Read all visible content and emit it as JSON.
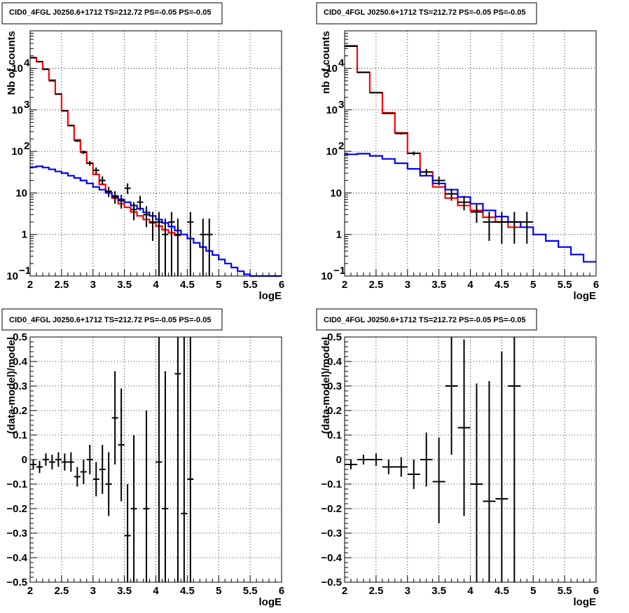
{
  "chart_data": [
    {
      "type": "histogram",
      "title": "CID0_4FGL J0250.6+1712 TS=212.72 PS=-0.05 PS=-0.05",
      "xlabel": "logE",
      "ylabel": "Nb of counts",
      "xlim": [
        2,
        6
      ],
      "ylim": [
        0.1,
        80000
      ],
      "yscale": "log",
      "grid": true,
      "x_ticks": [
        "2",
        "2.5",
        "3",
        "3.5",
        "4",
        "4.5",
        "5",
        "5.5",
        "6"
      ],
      "y_ticks": [
        {
          "v": 0.1,
          "t": "10",
          "sup": "−1"
        },
        {
          "v": 1,
          "t": "1"
        },
        {
          "v": 10,
          "t": "10"
        },
        {
          "v": 100,
          "t": "10",
          "sup": "2"
        },
        {
          "v": 1000,
          "t": "10",
          "sup": "3"
        },
        {
          "v": 10000,
          "t": "10",
          "sup": "4"
        }
      ],
      "bin_width": 0.1,
      "series": [
        {
          "color": "#ff0000",
          "kind": "step",
          "x0": 2.0,
          "values": [
            18000,
            14500,
            9500,
            5200,
            2400,
            950,
            420,
            190,
            98,
            52,
            28,
            16,
            10,
            7.5,
            5.5,
            4.5,
            3.5,
            2.8,
            2.3,
            1.9,
            1.6,
            1.3,
            1.1,
            0.95
          ]
        },
        {
          "color": "#0000ff",
          "kind": "step",
          "x0": 2.0,
          "values": [
            42,
            44,
            41,
            37,
            33,
            30,
            26,
            23,
            20,
            17,
            14,
            12,
            10,
            8.5,
            7,
            6,
            5,
            4.2,
            3.4,
            2.8,
            2.3,
            1.9,
            1.55,
            1.25,
            1.0,
            0.8,
            0.63,
            0.5,
            0.4,
            0.32,
            0.25,
            0.2,
            0.16,
            0.13,
            0.11,
            0.1,
            0.1,
            0.1,
            0.1,
            0.1
          ]
        },
        {
          "color": "#000000",
          "kind": "points",
          "points": [
            {
              "x": 2.05,
              "y": 18000,
              "lo": 17800,
              "hi": 18200
            },
            {
              "x": 2.15,
              "y": 14500,
              "lo": 14300,
              "hi": 14700
            },
            {
              "x": 2.25,
              "y": 9500,
              "lo": 9350,
              "hi": 9650
            },
            {
              "x": 2.35,
              "y": 5000,
              "lo": 4900,
              "hi": 5100
            },
            {
              "x": 2.45,
              "y": 2400,
              "lo": 2350,
              "hi": 2450
            },
            {
              "x": 2.55,
              "y": 950,
              "lo": 920,
              "hi": 980
            },
            {
              "x": 2.65,
              "y": 420,
              "lo": 400,
              "hi": 440
            },
            {
              "x": 2.75,
              "y": 180,
              "lo": 168,
              "hi": 192
            },
            {
              "x": 2.85,
              "y": 95,
              "lo": 86,
              "hi": 104
            },
            {
              "x": 2.95,
              "y": 52,
              "lo": 45,
              "hi": 59
            },
            {
              "x": 3.05,
              "y": 35,
              "lo": 29,
              "hi": 41
            },
            {
              "x": 3.15,
              "y": 20,
              "lo": 16,
              "hi": 25
            },
            {
              "x": 3.25,
              "y": 11,
              "lo": 8,
              "hi": 14
            },
            {
              "x": 3.35,
              "y": 8,
              "lo": 5.5,
              "hi": 11
            },
            {
              "x": 3.45,
              "y": 6.5,
              "lo": 4.2,
              "hi": 9
            },
            {
              "x": 3.55,
              "y": 13,
              "lo": 9.5,
              "hi": 17
            },
            {
              "x": 3.65,
              "y": 4,
              "lo": 2.2,
              "hi": 6
            },
            {
              "x": 3.75,
              "y": 6,
              "lo": 3.8,
              "hi": 8.5
            },
            {
              "x": 3.85,
              "y": 3,
              "lo": 1.5,
              "hi": 4.8
            },
            {
              "x": 3.95,
              "y": 2,
              "lo": 0.7,
              "hi": 3.5
            },
            {
              "x": 4.05,
              "y": 2,
              "lo": 0.1,
              "hi": 3.5
            },
            {
              "x": 4.15,
              "y": 1,
              "lo": 0.1,
              "hi": 2.4
            },
            {
              "x": 4.25,
              "y": 2,
              "lo": 0.1,
              "hi": 3.5
            },
            {
              "x": 4.35,
              "y": 1,
              "lo": 0.1,
              "hi": 2.4
            },
            {
              "x": 4.55,
              "y": 2,
              "lo": 0.1,
              "hi": 3.5
            },
            {
              "x": 4.75,
              "y": 1,
              "lo": 0.1,
              "hi": 2.4
            },
            {
              "x": 4.85,
              "y": 1,
              "lo": 0.1,
              "hi": 2.4
            }
          ]
        }
      ]
    },
    {
      "type": "histogram",
      "title": "CID0_4FGL J0250.6+1712 TS=212.72 PS=-0.05 PS=-0.05",
      "xlabel": "logE",
      "ylabel": "nb of counts",
      "xlim": [
        2,
        6
      ],
      "ylim": [
        0.1,
        80000
      ],
      "yscale": "log",
      "grid": true,
      "x_ticks": [
        "2",
        "2.5",
        "3",
        "3.5",
        "4",
        "4.5",
        "5",
        "5.5",
        "6"
      ],
      "y_ticks": [
        {
          "v": 0.1,
          "t": "10",
          "sup": "−1"
        },
        {
          "v": 1,
          "t": "1"
        },
        {
          "v": 10,
          "t": "10"
        },
        {
          "v": 100,
          "t": "10",
          "sup": "2"
        },
        {
          "v": 1000,
          "t": "10",
          "sup": "3"
        },
        {
          "v": 10000,
          "t": "10",
          "sup": "4"
        }
      ],
      "bin_width": 0.2,
      "series": [
        {
          "color": "#ff0000",
          "kind": "step",
          "x0": 2.0,
          "values": [
            35000,
            8000,
            2600,
            850,
            280,
            90,
            32,
            14,
            7.5,
            5,
            3.8,
            2.6,
            2.0,
            1.5
          ]
        },
        {
          "color": "#0000ff",
          "kind": "step",
          "x0": 2.0,
          "values": [
            85,
            88,
            78,
            66,
            52,
            38,
            26,
            17,
            12,
            8,
            5.5,
            3.8,
            2.7,
            2.0,
            1.5,
            1.0,
            0.7,
            0.5,
            0.33,
            0.22
          ]
        },
        {
          "color": "#000000",
          "kind": "points",
          "points": [
            {
              "x": 2.1,
              "y": 34000,
              "lo": 33500,
              "hi": 34500
            },
            {
              "x": 2.3,
              "y": 8000,
              "lo": 7850,
              "hi": 8150
            },
            {
              "x": 2.5,
              "y": 2600,
              "lo": 2520,
              "hi": 2680
            },
            {
              "x": 2.7,
              "y": 820,
              "lo": 790,
              "hi": 850
            },
            {
              "x": 2.9,
              "y": 270,
              "lo": 255,
              "hi": 285
            },
            {
              "x": 3.1,
              "y": 90,
              "lo": 81,
              "hi": 99
            },
            {
              "x": 3.3,
              "y": 32,
              "lo": 26,
              "hi": 38
            },
            {
              "x": 3.5,
              "y": 20,
              "lo": 15.5,
              "hi": 25
            },
            {
              "x": 3.7,
              "y": 9.5,
              "lo": 6.5,
              "hi": 12.5
            },
            {
              "x": 3.9,
              "y": 6,
              "lo": 3.8,
              "hi": 8.5
            },
            {
              "x": 4.1,
              "y": 3.5,
              "lo": 1.9,
              "hi": 5.3
            },
            {
              "x": 4.3,
              "y": 2,
              "lo": 0.7,
              "hi": 3.5
            },
            {
              "x": 4.5,
              "y": 2,
              "lo": 0.6,
              "hi": 3.5
            },
            {
              "x": 4.7,
              "y": 2,
              "lo": 0.6,
              "hi": 3.5
            },
            {
              "x": 4.9,
              "y": 2,
              "lo": 0.6,
              "hi": 3.5
            }
          ]
        }
      ]
    },
    {
      "type": "scatter",
      "title": "CID0_4FGL J0250.6+1712 TS=212.72 PS=-0.05 PS=-0.05",
      "xlabel": "logE",
      "ylabel": "(data-model)/model",
      "xlim": [
        2,
        6
      ],
      "ylim": [
        -0.5,
        0.5
      ],
      "yscale": "linear",
      "grid": true,
      "x_ticks": [
        "2",
        "2.5",
        "3",
        "3.5",
        "4",
        "4.5",
        "5",
        "5.5",
        "6"
      ],
      "y_ticks": [
        {
          "v": -0.5,
          "t": "−0.5"
        },
        {
          "v": -0.4,
          "t": "−0.4"
        },
        {
          "v": -0.3,
          "t": "−0.3"
        },
        {
          "v": -0.2,
          "t": "−0.2"
        },
        {
          "v": -0.1,
          "t": "−0.1"
        },
        {
          "v": 0,
          "t": "0"
        },
        {
          "v": 0.1,
          "t": "0.1"
        },
        {
          "v": 0.2,
          "t": "0.2"
        },
        {
          "v": 0.3,
          "t": "0.3"
        },
        {
          "v": 0.4,
          "t": "0.4"
        },
        {
          "v": 0.5,
          "t": "0.5"
        }
      ],
      "bin_width": 0.1,
      "series": [
        {
          "color": "#000000",
          "kind": "points",
          "points": [
            {
              "x": 2.05,
              "y": -0.02,
              "lo": -0.04,
              "hi": 0.0
            },
            {
              "x": 2.15,
              "y": -0.03,
              "lo": -0.055,
              "hi": -0.005
            },
            {
              "x": 2.25,
              "y": 0.0,
              "lo": -0.025,
              "hi": 0.025
            },
            {
              "x": 2.35,
              "y": -0.01,
              "lo": -0.04,
              "hi": 0.02
            },
            {
              "x": 2.45,
              "y": 0.0,
              "lo": -0.03,
              "hi": 0.03
            },
            {
              "x": 2.55,
              "y": -0.01,
              "lo": -0.045,
              "hi": 0.025
            },
            {
              "x": 2.65,
              "y": -0.01,
              "lo": -0.05,
              "hi": 0.03
            },
            {
              "x": 2.75,
              "y": -0.07,
              "lo": -0.11,
              "hi": -0.03
            },
            {
              "x": 2.85,
              "y": -0.05,
              "lo": -0.1,
              "hi": 0.0
            },
            {
              "x": 2.95,
              "y": 0.0,
              "lo": -0.06,
              "hi": 0.06
            },
            {
              "x": 3.05,
              "y": -0.08,
              "lo": -0.15,
              "hi": -0.01
            },
            {
              "x": 3.15,
              "y": -0.04,
              "lo": -0.14,
              "hi": 0.06
            },
            {
              "x": 3.25,
              "y": -0.1,
              "lo": -0.23,
              "hi": 0.03
            },
            {
              "x": 3.35,
              "y": 0.17,
              "lo": -0.02,
              "hi": 0.36
            },
            {
              "x": 3.45,
              "y": 0.06,
              "lo": -0.17,
              "hi": 0.29
            },
            {
              "x": 3.55,
              "y": -0.31,
              "lo": -0.5,
              "hi": -0.1
            },
            {
              "x": 3.65,
              "y": -0.2,
              "lo": -0.5,
              "hi": 0.1
            },
            {
              "x": 3.85,
              "y": -0.2,
              "lo": -0.5,
              "hi": 0.2
            },
            {
              "x": 4.05,
              "y": -0.01,
              "lo": -0.5,
              "hi": 0.5
            },
            {
              "x": 4.15,
              "y": -0.2,
              "lo": -0.5,
              "hi": 0.36
            },
            {
              "x": 4.35,
              "y": 0.35,
              "lo": -0.5,
              "hi": 0.5
            },
            {
              "x": 4.45,
              "y": -0.22,
              "lo": -0.5,
              "hi": 0.5
            },
            {
              "x": 4.55,
              "y": -0.08,
              "lo": -0.5,
              "hi": 0.5
            }
          ]
        }
      ]
    },
    {
      "type": "scatter",
      "title": "CID0_4FGL J0250.6+1712 TS=212.72 PS=-0.05 PS=-0.05",
      "xlabel": "logE",
      "ylabel": "(data-model)/model",
      "xlim": [
        2,
        6
      ],
      "ylim": [
        -0.5,
        0.5
      ],
      "yscale": "linear",
      "grid": true,
      "x_ticks": [
        "2",
        "2.5",
        "3",
        "3.5",
        "4",
        "4.5",
        "5",
        "5.5",
        "6"
      ],
      "y_ticks": [
        {
          "v": -0.5,
          "t": "−0.5"
        },
        {
          "v": -0.4,
          "t": "−0.4"
        },
        {
          "v": -0.3,
          "t": "−0.3"
        },
        {
          "v": -0.2,
          "t": "−0.2"
        },
        {
          "v": -0.1,
          "t": "−0.1"
        },
        {
          "v": 0,
          "t": "0"
        },
        {
          "v": 0.1,
          "t": "0.1"
        },
        {
          "v": 0.2,
          "t": "0.2"
        },
        {
          "v": 0.3,
          "t": "0.3"
        },
        {
          "v": 0.4,
          "t": "0.4"
        },
        {
          "v": 0.5,
          "t": "0.5"
        }
      ],
      "bin_width": 0.2,
      "series": [
        {
          "color": "#000000",
          "kind": "points",
          "points": [
            {
              "x": 2.1,
              "y": -0.02,
              "lo": -0.04,
              "hi": 0.0
            },
            {
              "x": 2.3,
              "y": 0.0,
              "lo": -0.02,
              "hi": 0.02
            },
            {
              "x": 2.5,
              "y": 0.0,
              "lo": -0.025,
              "hi": 0.025
            },
            {
              "x": 2.7,
              "y": -0.03,
              "lo": -0.06,
              "hi": 0.0
            },
            {
              "x": 2.9,
              "y": -0.03,
              "lo": -0.07,
              "hi": 0.01
            },
            {
              "x": 3.1,
              "y": -0.06,
              "lo": -0.12,
              "hi": 0.0
            },
            {
              "x": 3.3,
              "y": 0.0,
              "lo": -0.11,
              "hi": 0.11
            },
            {
              "x": 3.5,
              "y": -0.09,
              "lo": -0.26,
              "hi": 0.09
            },
            {
              "x": 3.7,
              "y": 0.3,
              "lo": 0.02,
              "hi": 0.5
            },
            {
              "x": 3.9,
              "y": 0.13,
              "lo": -0.23,
              "hi": 0.49
            },
            {
              "x": 4.1,
              "y": -0.1,
              "lo": -0.5,
              "hi": 0.31
            },
            {
              "x": 4.3,
              "y": -0.17,
              "lo": -0.5,
              "hi": 0.32
            },
            {
              "x": 4.5,
              "y": -0.16,
              "lo": -0.5,
              "hi": 0.44
            },
            {
              "x": 4.7,
              "y": 0.3,
              "lo": -0.5,
              "hi": 0.5
            }
          ]
        }
      ]
    }
  ]
}
